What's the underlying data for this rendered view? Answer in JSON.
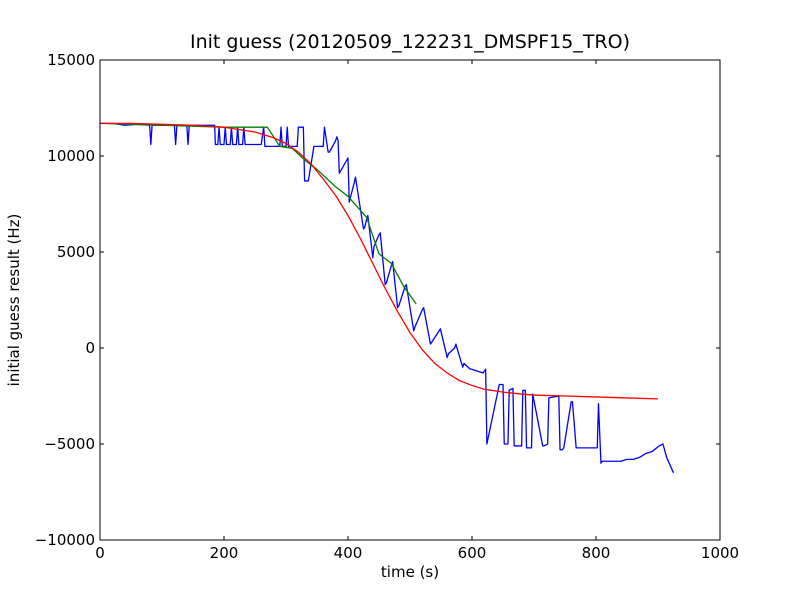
{
  "chart_data": {
    "type": "line",
    "title": "Init guess (20120509_122231_DMSPF15_TRO)",
    "xlabel": "time (s)",
    "ylabel": "initial guess result (Hz)",
    "xlim": [
      0,
      1000
    ],
    "ylim": [
      -10000,
      15000
    ],
    "xticks": [
      0,
      200,
      400,
      600,
      800,
      1000
    ],
    "yticks": [
      -10000,
      -5000,
      0,
      5000,
      10000,
      15000
    ],
    "x_tick_labels": [
      "0",
      "200",
      "400",
      "600",
      "800",
      "1000"
    ],
    "y_tick_labels": [
      "−10000",
      "−5000",
      "0",
      "5000",
      "10000",
      "15000"
    ],
    "grid": false,
    "series": [
      {
        "color": "#0000ff",
        "x": [
          0,
          20,
          40,
          60,
          80,
          82,
          84,
          86,
          100,
          110,
          120,
          122,
          124,
          126,
          140,
          142,
          144,
          150,
          170,
          185,
          186,
          190,
          192,
          194,
          200,
          202,
          204,
          210,
          212,
          214,
          220,
          222,
          224,
          230,
          232,
          234,
          240,
          250,
          260,
          264,
          266,
          268,
          280,
          290,
          292,
          294,
          300,
          302,
          304,
          310,
          318,
          320,
          328,
          330,
          334,
          336,
          345,
          347,
          360,
          362,
          368,
          370,
          380,
          382,
          384,
          386,
          400,
          402,
          410,
          412,
          425,
          427,
          430,
          432,
          440,
          442,
          450,
          452,
          460,
          462,
          470,
          472,
          480,
          482,
          492,
          494,
          506,
          508,
          520,
          522,
          533,
          535,
          547,
          549,
          560,
          562,
          572,
          574,
          585,
          587,
          597,
          599,
          618,
          620,
          622,
          624,
          644,
          646,
          650,
          652,
          658,
          660,
          666,
          668,
          680,
          682,
          686,
          688,
          696,
          698,
          714,
          716,
          722,
          724,
          740,
          742,
          746,
          748,
          760,
          762,
          768,
          770,
          802,
          804,
          808,
          810,
          830,
          840,
          850,
          860,
          870,
          880,
          890,
          902,
          908,
          914,
          925
        ],
        "y": [
          11700,
          11700,
          11600,
          11650,
          11600,
          10600,
          11600,
          11600,
          11600,
          11600,
          11600,
          10600,
          11600,
          11600,
          11600,
          10600,
          11600,
          11600,
          11600,
          11600,
          10600,
          10600,
          11500,
          10600,
          10600,
          11500,
          10600,
          10600,
          11500,
          10600,
          10600,
          11500,
          10600,
          10600,
          11500,
          10600,
          10600,
          10600,
          10600,
          11500,
          10500,
          10500,
          10500,
          10500,
          11500,
          10500,
          10500,
          11500,
          10500,
          10500,
          10500,
          11500,
          11500,
          8700,
          8700,
          8700,
          10500,
          10500,
          10500,
          11500,
          10200,
          10200,
          10800,
          11000,
          10800,
          9100,
          9900,
          7600,
          8600,
          8900,
          6200,
          6300,
          6700,
          6900,
          4700,
          5300,
          5900,
          6000,
          3300,
          3400,
          4300,
          4500,
          2100,
          2200,
          3200,
          3300,
          900,
          1100,
          2000,
          2100,
          200,
          300,
          900,
          1000,
          -500,
          -300,
          0,
          200,
          -1000,
          -800,
          -1100,
          -1100,
          -1300,
          -1200,
          -1100,
          -5000,
          -1900,
          -1900,
          -1900,
          -5000,
          -5000,
          -2200,
          -2100,
          -5100,
          -5100,
          -2200,
          -2200,
          -5200,
          -5200,
          -2400,
          -5100,
          -5100,
          -5000,
          -2600,
          -2500,
          -5300,
          -5300,
          -5200,
          -2800,
          -2800,
          -5200,
          -5200,
          -5200,
          -2900,
          -6000,
          -5900,
          -5900,
          -5900,
          -5800,
          -5800,
          -5700,
          -5500,
          -5400,
          -5100,
          -5000,
          -5700,
          -6500
        ]
      },
      {
        "color": "#008000",
        "x": [
          0,
          100,
          200,
          270,
          290,
          310,
          330,
          350,
          380,
          400,
          430,
          450,
          470,
          490,
          510
        ],
        "y": [
          11700,
          11600,
          11500,
          11500,
          10500,
          10400,
          9800,
          9300,
          8400,
          7900,
          6800,
          4900,
          4400,
          3200,
          2300
        ]
      },
      {
        "color": "#ff0000",
        "x": [
          0,
          50,
          100,
          150,
          200,
          250,
          280,
          300,
          320,
          340,
          360,
          380,
          400,
          420,
          440,
          460,
          480,
          500,
          520,
          540,
          560,
          580,
          600,
          620,
          650,
          680,
          700,
          750,
          800,
          850,
          900
        ],
        "y": [
          11700,
          11700,
          11650,
          11600,
          11500,
          11250,
          10950,
          10650,
          10200,
          9600,
          8800,
          7950,
          6900,
          5700,
          4400,
          3100,
          1900,
          800,
          -100,
          -800,
          -1300,
          -1700,
          -1950,
          -2150,
          -2300,
          -2400,
          -2450,
          -2500,
          -2550,
          -2600,
          -2650
        ]
      }
    ]
  }
}
